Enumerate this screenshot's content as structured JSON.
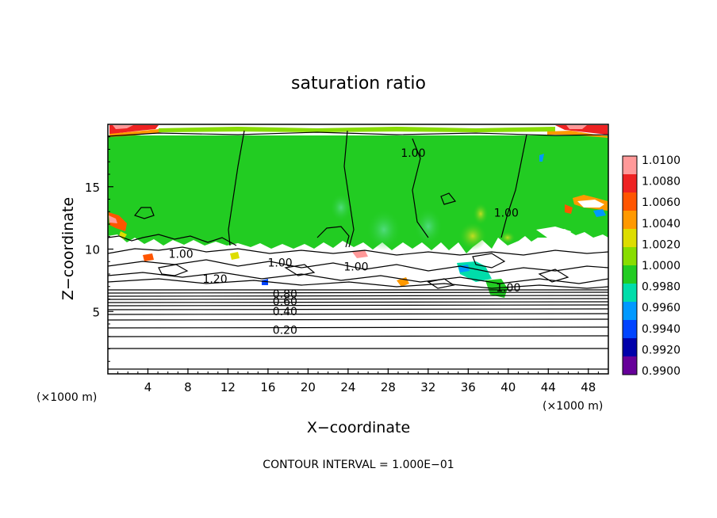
{
  "chart_data": {
    "type": "heatmap",
    "title": "saturation ratio",
    "xlabel": "X−coordinate",
    "ylabel": "Z−coordinate",
    "x_unit_left": "(×1000 m)",
    "x_unit_right": "(×1000 m)",
    "footer": "CONTOUR INTERVAL = 1.000E−01",
    "xlim": [
      0,
      50
    ],
    "ylim": [
      0,
      20
    ],
    "x_ticks": [
      "4",
      "8",
      "12",
      "16",
      "20",
      "24",
      "28",
      "32",
      "36",
      "40",
      "44",
      "48"
    ],
    "y_ticks": [
      "5",
      "10",
      "15"
    ],
    "x_tick_values": [
      4,
      8,
      12,
      16,
      20,
      24,
      28,
      32,
      36,
      40,
      44,
      48
    ],
    "y_tick_values": [
      5,
      10,
      15
    ],
    "colorbar": {
      "labels": [
        "1.0100",
        "1.0080",
        "1.0060",
        "1.0040",
        "1.0020",
        "1.0000",
        "0.9980",
        "0.9960",
        "0.9940",
        "0.9920",
        "0.9900"
      ],
      "colors": [
        "#ff9999",
        "#ee2222",
        "#ff5500",
        "#ff9900",
        "#dddd00",
        "#88dd00",
        "#22cc22",
        "#00ddaa",
        "#0099ff",
        "#0044ff",
        "#0000aa",
        "#660099"
      ]
    },
    "contour_labels": [
      {
        "text": "1.00",
        "x": 30.5,
        "z": 17.4
      },
      {
        "text": "1.00",
        "x": 39.8,
        "z": 12.6
      },
      {
        "text": "1.00",
        "x": 7.3,
        "z": 9.3
      },
      {
        "text": "1.00",
        "x": 17.2,
        "z": 8.6
      },
      {
        "text": "1.00",
        "x": 24.8,
        "z": 8.3
      },
      {
        "text": "1.00",
        "x": 40.0,
        "z": 6.6
      },
      {
        "text": "1.20",
        "x": 10.7,
        "z": 7.3
      },
      {
        "text": "0.80",
        "x": 17.7,
        "z": 6.1
      },
      {
        "text": "0.60",
        "x": 17.7,
        "z": 5.5
      },
      {
        "text": "0.40",
        "x": 17.7,
        "z": 4.7
      },
      {
        "text": "0.20",
        "x": 17.7,
        "z": 3.2
      }
    ]
  }
}
